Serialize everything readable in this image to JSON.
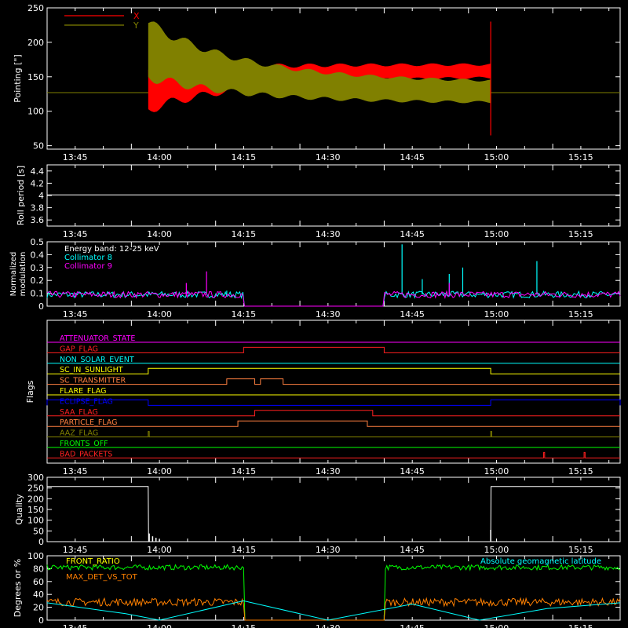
{
  "time_labels": [
    "13:45",
    "14:00",
    "14:15",
    "14:30",
    "14:45",
    "15:00",
    "15:15"
  ],
  "colors": {
    "background": "#000000",
    "axes": "#ffffff",
    "x": "#ff0000",
    "y": "#808000",
    "collimator8": "#00ffff",
    "collimator9": "#ff00ff",
    "green": "#00ff00",
    "orange": "#ff8000",
    "yellow": "#ffff00",
    "cyan": "#00ffff"
  },
  "chart_data": [
    {
      "id": "pointing",
      "type": "line",
      "ylabel": "Pointing [\"]",
      "xlim": [
        13.667,
        15.367
      ],
      "ylim": [
        45,
        250
      ],
      "yticks": [
        50,
        100,
        150,
        200,
        250
      ],
      "series": [
        {
          "name": "X",
          "color": "#ff0000",
          "baseline": 127,
          "start": 13.967,
          "end": 14.983,
          "envelope": {
            "start_low": 103,
            "start_high": 160,
            "end_low": 150,
            "end_high": 168
          }
        },
        {
          "name": "Y",
          "color": "#808000",
          "baseline": 127,
          "start": 13.967,
          "end": 14.983,
          "envelope": {
            "start_low": 150,
            "start_high": 228,
            "end_low": 112,
            "end_high": 142
          }
        }
      ]
    },
    {
      "id": "roll",
      "type": "line",
      "ylabel": "Roll period [s]",
      "xlim": [
        13.667,
        15.367
      ],
      "ylim": [
        3.5,
        4.5
      ],
      "yticks": [
        3.6,
        3.8,
        4.0,
        4.2,
        4.4
      ],
      "series": [
        {
          "name": "",
          "color": "#ffffff",
          "constant": 4.01
        }
      ]
    },
    {
      "id": "modulation",
      "type": "line",
      "ylabel": [
        "Normalized",
        "modulation"
      ],
      "xlim": [
        13.667,
        15.367
      ],
      "ylim": [
        0,
        0.5
      ],
      "yticks": [
        0.0,
        0.1,
        0.2,
        0.3,
        0.4,
        0.5
      ],
      "legend": [
        "Energy band: 12-25 keV",
        "Collimator 8",
        "Collimator 9"
      ],
      "gaps": [
        [
          14.25,
          14.667
        ]
      ],
      "series": [
        {
          "name": "Collimator 8",
          "color": "#00ffff",
          "level": 0.09,
          "spikes": [
            [
              14.72,
              0.48
            ],
            [
              14.78,
              0.21
            ],
            [
              14.86,
              0.25
            ],
            [
              14.9,
              0.3
            ],
            [
              15.12,
              0.35
            ],
            [
              14.2,
              0.12
            ]
          ]
        },
        {
          "name": "Collimator 9",
          "color": "#ff00ff",
          "level": 0.09,
          "spikes": [
            [
              14.14,
              0.27
            ],
            [
              14.08,
              0.18
            ],
            [
              14.86,
              0.18
            ]
          ]
        }
      ]
    },
    {
      "id": "flags",
      "type": "line",
      "ylabel": "Flags",
      "xlim": [
        13.667,
        15.367
      ],
      "flags": [
        {
          "name": "ATTENUATOR_STATE",
          "color": "#ff00ff",
          "steps": []
        },
        {
          "name": "GAP_FLAG",
          "color": "#ff2020",
          "steps": [
            [
              14.25,
              14.667
            ]
          ]
        },
        {
          "name": "NON_SOLAR_EVENT",
          "color": "#00ffff",
          "steps": []
        },
        {
          "name": "SC_IN_SUNLIGHT",
          "color": "#ffff00",
          "steps": [
            [
              13.967,
              14.983
            ]
          ]
        },
        {
          "name": "SC_TRANSMITTER",
          "color": "#ff8040",
          "steps": [
            [
              14.2,
              14.283
            ],
            [
              14.3,
              14.367
            ]
          ]
        },
        {
          "name": "FLARE_FLAG",
          "color": "#ffff00",
          "steps": []
        },
        {
          "name": "ECLIPSE_FLAG",
          "color": "#0000ff",
          "steps": [
            [
              13.667,
              13.967
            ],
            [
              14.983,
              15.367
            ]
          ]
        },
        {
          "name": "SAA_FLAG",
          "color": "#ff2020",
          "steps": [
            [
              14.283,
              14.633
            ]
          ]
        },
        {
          "name": "PARTICLE_FLAG",
          "color": "#ff8040",
          "steps": [
            [
              14.233,
              14.617
            ]
          ]
        },
        {
          "name": "AAZ_FLAG",
          "color": "#808000",
          "steps": [
            [
              13.967,
              13.97
            ],
            [
              14.983,
              14.986
            ]
          ]
        },
        {
          "name": "FRONTS_OFF",
          "color": "#00ff00",
          "steps": []
        },
        {
          "name": "BAD_PACKETS",
          "color": "#ff2020",
          "steps": [
            [
              15.14,
              15.143
            ],
            [
              15.26,
              15.263
            ]
          ]
        }
      ]
    },
    {
      "id": "quality",
      "type": "line",
      "ylabel": "Quality",
      "xlim": [
        13.667,
        15.367
      ],
      "ylim": [
        0,
        300
      ],
      "yticks": [
        0,
        50,
        100,
        150,
        200,
        250,
        300
      ],
      "series": [
        {
          "name": "",
          "color": "#ffffff",
          "points": [
            [
              13.667,
              257
            ],
            [
              13.967,
              257
            ],
            [
              13.968,
              0
            ],
            [
              14.983,
              0
            ],
            [
              14.984,
              257
            ],
            [
              15.367,
              257
            ]
          ],
          "noise": [
            [
              13.97,
              38
            ],
            [
              13.98,
              25
            ],
            [
              13.99,
              18
            ],
            [
              14.0,
              10
            ],
            [
              14.983,
              55
            ]
          ]
        }
      ]
    },
    {
      "id": "geometry",
      "type": "line",
      "ylabel": "Degrees or %",
      "xlim": [
        13.667,
        15.367
      ],
      "ylim": [
        0,
        100
      ],
      "yticks": [
        0,
        20,
        40,
        60,
        80,
        100
      ],
      "legend": [
        "FRONT_RATIO",
        "MAX_DET_VS_TOT",
        "Absolute geomagnetic latitude"
      ],
      "gaps": [
        [
          14.25,
          14.667
        ]
      ],
      "series": [
        {
          "name": "FRONT_RATIO",
          "color": "#00ff00",
          "level": 82
        },
        {
          "name": "MAX_DET_VS_TOT",
          "color": "#ff8000",
          "level": 28
        },
        {
          "name": "Absolute geomagnetic latitude",
          "color": "#00ffff",
          "points": [
            [
              13.667,
              27
            ],
            [
              13.9,
              10
            ],
            [
              14.0,
              0
            ],
            [
              14.25,
              30
            ],
            [
              14.5,
              0
            ],
            [
              14.75,
              25
            ],
            [
              14.95,
              0
            ],
            [
              15.15,
              18
            ],
            [
              15.367,
              27
            ]
          ]
        }
      ]
    }
  ]
}
